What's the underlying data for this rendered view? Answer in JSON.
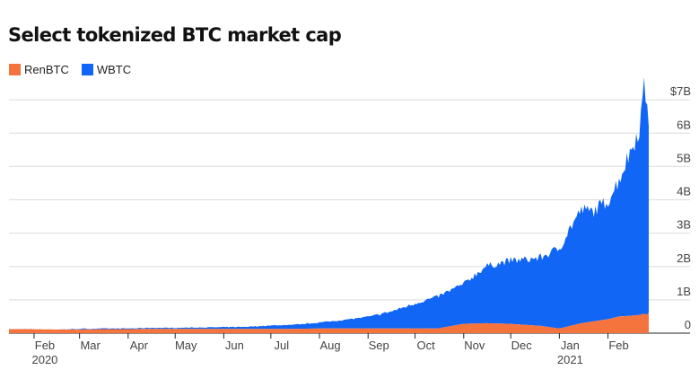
{
  "chart_data": {
    "type": "area",
    "stacked": true,
    "title": "Select tokenized BTC market cap",
    "xlabel": "",
    "ylabel": "",
    "x_tick_labels": [
      {
        "label": "Feb",
        "sub": "2020",
        "date": "2020-02-01"
      },
      {
        "label": "Mar",
        "sub": "",
        "date": "2020-03-01"
      },
      {
        "label": "Apr",
        "sub": "",
        "date": "2020-04-01"
      },
      {
        "label": "May",
        "sub": "",
        "date": "2020-05-01"
      },
      {
        "label": "Jun",
        "sub": "",
        "date": "2020-06-01"
      },
      {
        "label": "Jul",
        "sub": "",
        "date": "2020-07-01"
      },
      {
        "label": "Aug",
        "sub": "",
        "date": "2020-08-01"
      },
      {
        "label": "Sep",
        "sub": "",
        "date": "2020-09-01"
      },
      {
        "label": "Oct",
        "sub": "",
        "date": "2020-10-01"
      },
      {
        "label": "Nov",
        "sub": "",
        "date": "2020-11-01"
      },
      {
        "label": "Dec",
        "sub": "",
        "date": "2020-12-01"
      },
      {
        "label": "Jan",
        "sub": "2021",
        "date": "2021-01-01"
      },
      {
        "label": "Feb",
        "sub": "",
        "date": "2021-02-01"
      }
    ],
    "x_range": [
      "2020-01-16",
      "2021-02-27"
    ],
    "y_ticks": [
      0,
      1,
      2,
      3,
      4,
      5,
      6,
      7
    ],
    "y_tick_labels": [
      "0",
      "1B",
      "2B",
      "3B",
      "4B",
      "5B",
      "6B",
      "$7B"
    ],
    "ylim": [
      0,
      7.3
    ],
    "y_unit": "$ billions",
    "grid": "horizontal",
    "legend_position": "top-left",
    "x": [
      "2020-01-16",
      "2020-02-01",
      "2020-02-15",
      "2020-03-01",
      "2020-03-15",
      "2020-04-01",
      "2020-04-15",
      "2020-05-01",
      "2020-05-15",
      "2020-06-01",
      "2020-06-15",
      "2020-07-01",
      "2020-07-15",
      "2020-08-01",
      "2020-08-15",
      "2020-09-01",
      "2020-09-15",
      "2020-10-01",
      "2020-10-15",
      "2020-11-01",
      "2020-11-15",
      "2020-12-01",
      "2020-12-10",
      "2020-12-20",
      "2021-01-01",
      "2021-01-08",
      "2021-01-15",
      "2021-01-22",
      "2021-02-01",
      "2021-02-08",
      "2021-02-15",
      "2021-02-21",
      "2021-02-24",
      "2021-02-26",
      "2021-02-27"
    ],
    "series": [
      {
        "name": "RenBTC",
        "color": "#f5733d",
        "values": [
          0.12,
          0.12,
          0.11,
          0.11,
          0.12,
          0.12,
          0.13,
          0.13,
          0.13,
          0.13,
          0.13,
          0.13,
          0.13,
          0.14,
          0.14,
          0.14,
          0.14,
          0.14,
          0.14,
          0.28,
          0.3,
          0.28,
          0.25,
          0.22,
          0.14,
          0.22,
          0.3,
          0.35,
          0.42,
          0.5,
          0.52,
          0.55,
          0.58,
          0.56,
          0.62
        ]
      },
      {
        "name": "WBTC",
        "color": "#1166f5",
        "values": [
          0.0,
          0.0,
          0.0,
          0.02,
          0.02,
          0.02,
          0.03,
          0.03,
          0.04,
          0.05,
          0.06,
          0.1,
          0.12,
          0.18,
          0.25,
          0.35,
          0.5,
          0.75,
          0.95,
          1.2,
          1.7,
          1.9,
          1.95,
          2.05,
          2.4,
          2.95,
          3.4,
          3.3,
          3.55,
          4.1,
          4.9,
          5.6,
          6.75,
          6.4,
          5.8
        ]
      }
    ]
  }
}
